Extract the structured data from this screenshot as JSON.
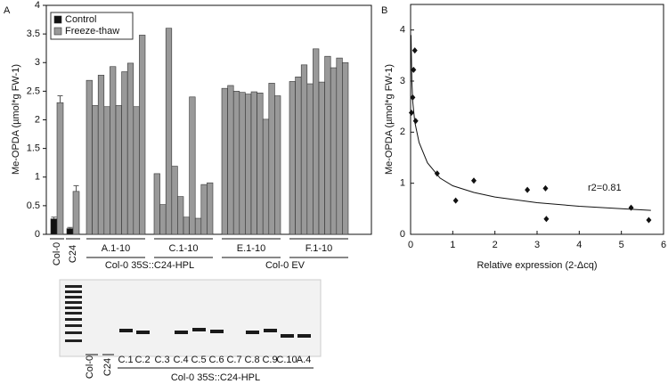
{
  "chart_data": [
    {
      "type": "bar",
      "panel": "A",
      "y_label": "Me-OPDA (µmol*g FW-1)",
      "categories": [
        "Col-0",
        "C24",
        null,
        null,
        null,
        null,
        null,
        null,
        null,
        null,
        null,
        null,
        null,
        null,
        null,
        null,
        null,
        null,
        null,
        null,
        null,
        null,
        null,
        null,
        null,
        null,
        null,
        null,
        null,
        null,
        null,
        null,
        null,
        null,
        null,
        null,
        null,
        null,
        null,
        null,
        null,
        null
      ],
      "group_labels": [
        "A.1-10",
        "C.1-10",
        "E.1-10",
        "F.1-10"
      ],
      "supergroup_labels": [
        "Col-0 35S::C24-HPL",
        "Col-0 EV"
      ],
      "series": [
        {
          "name": "Control",
          "color": "#111111",
          "values": [
            0.27,
            0.1,
            null,
            null,
            null,
            null,
            null,
            null,
            null,
            null,
            null,
            null,
            null,
            null,
            null,
            null,
            null,
            null,
            null,
            null,
            null,
            null,
            null,
            null,
            null,
            null,
            null,
            null,
            null,
            null,
            null,
            null,
            null,
            null,
            null,
            null,
            null,
            null,
            null,
            null,
            null,
            null
          ],
          "errors": [
            0.03,
            0.02,
            null,
            null,
            null,
            null,
            null,
            null,
            null,
            null,
            null,
            null,
            null,
            null,
            null,
            null,
            null,
            null,
            null,
            null,
            null,
            null,
            null,
            null,
            null,
            null,
            null,
            null,
            null,
            null,
            null,
            null,
            null,
            null,
            null,
            null,
            null,
            null,
            null,
            null,
            null,
            null
          ]
        },
        {
          "name": "Freeze-thaw",
          "color": "#999999",
          "values": [
            2.3,
            0.75,
            2.69,
            2.25,
            2.78,
            2.23,
            2.93,
            2.25,
            2.84,
            2.99,
            2.23,
            3.48,
            1.06,
            0.52,
            3.6,
            1.19,
            0.66,
            0.3,
            2.4,
            0.28,
            0.87,
            0.9,
            2.55,
            2.6,
            2.5,
            2.48,
            2.45,
            2.49,
            2.47,
            2.01,
            2.64,
            2.42,
            2.67,
            2.75,
            2.96,
            2.63,
            3.24,
            2.66,
            3.11,
            2.91,
            3.08,
            3.0
          ],
          "errors": [
            0.12,
            0.1,
            null,
            null,
            null,
            null,
            null,
            null,
            null,
            null,
            null,
            null,
            null,
            null,
            null,
            null,
            null,
            null,
            null,
            null,
            null,
            null,
            null,
            null,
            null,
            null,
            null,
            null,
            null,
            null,
            null,
            null,
            null,
            null,
            null,
            null,
            null,
            null,
            null,
            null,
            null,
            null
          ]
        }
      ],
      "ylim": [
        0,
        4
      ],
      "yticks": [
        0,
        0.5,
        1,
        1.5,
        2,
        2.5,
        3,
        3.5,
        4
      ],
      "legend": "upper left"
    },
    {
      "type": "scatter",
      "panel": "B",
      "y_label": "Me-OPDA (µmol*g FW-1)",
      "x_label": "Relative expression (2-Δcq)",
      "x": [
        0.02,
        0.05,
        0.07,
        0.1,
        0.12,
        0.63,
        1.07,
        1.5,
        2.77,
        3.2,
        3.22,
        5.23,
        5.65
      ],
      "values": [
        2.38,
        2.68,
        3.22,
        3.6,
        2.22,
        1.19,
        0.66,
        1.05,
        0.87,
        0.9,
        0.3,
        0.52,
        0.28
      ],
      "color": "#111111",
      "fit": {
        "x": [
          0.01,
          0.03,
          0.05,
          0.1,
          0.2,
          0.4,
          0.7,
          1,
          1.5,
          2,
          3,
          4,
          5,
          5.7
        ],
        "y": [
          3.9,
          3.0,
          2.6,
          2.2,
          1.8,
          1.4,
          1.1,
          0.95,
          0.82,
          0.73,
          0.62,
          0.55,
          0.5,
          0.47
        ]
      },
      "annotation": "r2=0.81",
      "xlim": [
        0,
        6
      ],
      "xticks": [
        0,
        1,
        2,
        3,
        4,
        5,
        6
      ],
      "ylim": [
        0,
        4.5
      ],
      "yticks": [
        0,
        1,
        2,
        3,
        4
      ]
    }
  ],
  "gel": {
    "lanes": [
      "Col-0",
      "C24",
      "C.1",
      "C.2",
      "C.3",
      "C.4",
      "C.5",
      "C.6",
      "C.7",
      "C.8",
      "C.9",
      "C.10",
      "A.4"
    ],
    "group_label": "Col-0  35S::C24-HPL"
  }
}
